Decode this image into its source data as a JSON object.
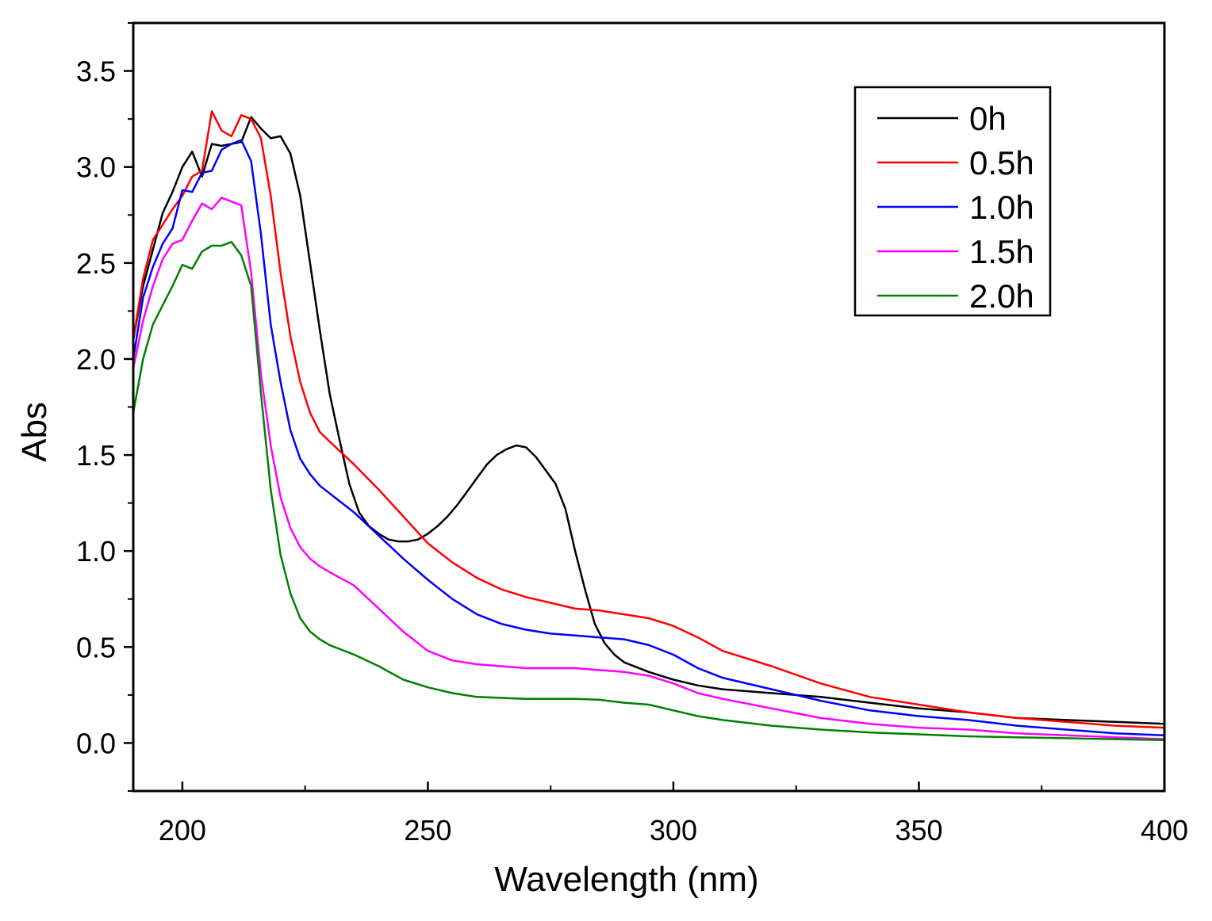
{
  "chart_data": {
    "type": "line",
    "title": "",
    "xlabel": "Wavelength (nm)",
    "ylabel": "Abs",
    "xlim": [
      190,
      400
    ],
    "ylim": [
      -0.25,
      3.75
    ],
    "xticks": [
      200,
      250,
      300,
      350,
      400
    ],
    "xtick_labels": [
      "200",
      "250",
      "300",
      "350",
      "400"
    ],
    "yticks": [
      0.0,
      0.5,
      1.0,
      1.5,
      2.0,
      2.5,
      3.0,
      3.5
    ],
    "ytick_labels": [
      "0.0",
      "0.5",
      "1.0",
      "1.5",
      "2.0",
      "2.5",
      "3.0",
      "3.5"
    ],
    "grid": false,
    "legend_position": "top-right",
    "series": [
      {
        "name": "0h",
        "color": "#000000",
        "x": [
          190,
          192,
          194,
          196,
          198,
          200,
          202,
          204,
          206,
          208,
          210,
          212,
          214,
          216,
          218,
          220,
          222,
          224,
          226,
          228,
          230,
          232,
          234,
          236,
          238,
          240,
          242,
          244,
          246,
          248,
          250,
          252,
          254,
          256,
          258,
          260,
          262,
          264,
          266,
          268,
          270,
          272,
          274,
          276,
          278,
          280,
          282,
          284,
          286,
          288,
          290,
          295,
          300,
          305,
          310,
          320,
          330,
          340,
          350,
          360,
          370,
          380,
          390,
          400
        ],
        "y": [
          2.1,
          2.38,
          2.57,
          2.76,
          2.87,
          3.0,
          3.08,
          2.95,
          3.12,
          3.11,
          3.12,
          3.13,
          3.26,
          3.2,
          3.15,
          3.16,
          3.07,
          2.85,
          2.5,
          2.15,
          1.82,
          1.58,
          1.35,
          1.2,
          1.13,
          1.09,
          1.06,
          1.05,
          1.05,
          1.06,
          1.09,
          1.13,
          1.18,
          1.24,
          1.31,
          1.38,
          1.45,
          1.5,
          1.53,
          1.55,
          1.54,
          1.49,
          1.42,
          1.35,
          1.22,
          1.0,
          0.8,
          0.62,
          0.52,
          0.46,
          0.42,
          0.37,
          0.33,
          0.3,
          0.28,
          0.26,
          0.24,
          0.21,
          0.18,
          0.16,
          0.13,
          0.12,
          0.11,
          0.1
        ]
      },
      {
        "name": "0.5h",
        "color": "#ff0000",
        "x": [
          190,
          192,
          194,
          196,
          198,
          200,
          202,
          204,
          206,
          208,
          210,
          212,
          214,
          216,
          218,
          220,
          222,
          224,
          226,
          228,
          230,
          235,
          240,
          245,
          250,
          255,
          260,
          265,
          270,
          275,
          280,
          285,
          290,
          295,
          300,
          305,
          310,
          320,
          330,
          340,
          350,
          360,
          370,
          380,
          390,
          400
        ],
        "y": [
          2.1,
          2.42,
          2.62,
          2.7,
          2.78,
          2.85,
          2.95,
          2.98,
          3.29,
          3.19,
          3.16,
          3.27,
          3.25,
          3.15,
          2.85,
          2.45,
          2.12,
          1.88,
          1.72,
          1.62,
          1.57,
          1.45,
          1.32,
          1.18,
          1.04,
          0.94,
          0.86,
          0.8,
          0.76,
          0.73,
          0.7,
          0.69,
          0.67,
          0.65,
          0.61,
          0.55,
          0.48,
          0.4,
          0.31,
          0.24,
          0.2,
          0.16,
          0.13,
          0.11,
          0.09,
          0.08
        ]
      },
      {
        "name": "1.0h",
        "color": "#0000ff",
        "x": [
          190,
          192,
          194,
          196,
          198,
          200,
          202,
          204,
          206,
          208,
          210,
          212,
          214,
          216,
          218,
          220,
          222,
          224,
          226,
          228,
          230,
          235,
          240,
          245,
          250,
          255,
          260,
          265,
          270,
          275,
          280,
          285,
          290,
          295,
          300,
          305,
          310,
          320,
          330,
          340,
          350,
          360,
          370,
          380,
          390,
          400
        ],
        "y": [
          2.0,
          2.32,
          2.48,
          2.6,
          2.68,
          2.88,
          2.87,
          2.97,
          2.98,
          3.09,
          3.12,
          3.14,
          3.03,
          2.65,
          2.18,
          1.88,
          1.63,
          1.48,
          1.4,
          1.34,
          1.3,
          1.2,
          1.08,
          0.96,
          0.85,
          0.75,
          0.67,
          0.62,
          0.59,
          0.57,
          0.56,
          0.55,
          0.54,
          0.51,
          0.46,
          0.39,
          0.34,
          0.28,
          0.22,
          0.17,
          0.14,
          0.12,
          0.09,
          0.07,
          0.05,
          0.04
        ]
      },
      {
        "name": "1.5h",
        "color": "#ff00ff",
        "x": [
          190,
          192,
          194,
          196,
          198,
          200,
          202,
          204,
          206,
          208,
          210,
          212,
          214,
          216,
          218,
          220,
          222,
          224,
          226,
          228,
          230,
          235,
          240,
          245,
          250,
          255,
          260,
          265,
          270,
          275,
          280,
          285,
          290,
          295,
          300,
          305,
          310,
          320,
          330,
          340,
          350,
          360,
          370,
          380,
          390,
          400
        ],
        "y": [
          1.95,
          2.2,
          2.38,
          2.52,
          2.6,
          2.62,
          2.72,
          2.81,
          2.78,
          2.84,
          2.82,
          2.8,
          2.45,
          1.92,
          1.55,
          1.28,
          1.12,
          1.02,
          0.96,
          0.92,
          0.89,
          0.82,
          0.7,
          0.58,
          0.48,
          0.43,
          0.41,
          0.4,
          0.39,
          0.39,
          0.39,
          0.38,
          0.37,
          0.35,
          0.31,
          0.26,
          0.23,
          0.18,
          0.13,
          0.1,
          0.08,
          0.07,
          0.05,
          0.04,
          0.03,
          0.02
        ]
      },
      {
        "name": "2.0h",
        "color": "#008000",
        "x": [
          190,
          192,
          194,
          196,
          198,
          200,
          202,
          204,
          206,
          208,
          210,
          212,
          214,
          216,
          218,
          220,
          222,
          224,
          226,
          228,
          230,
          235,
          240,
          245,
          250,
          255,
          260,
          265,
          270,
          275,
          280,
          285,
          290,
          295,
          300,
          305,
          310,
          320,
          330,
          340,
          350,
          360,
          370,
          380,
          390,
          400
        ],
        "y": [
          1.72,
          2.0,
          2.18,
          2.28,
          2.38,
          2.49,
          2.47,
          2.56,
          2.59,
          2.59,
          2.61,
          2.54,
          2.38,
          1.82,
          1.32,
          0.98,
          0.78,
          0.65,
          0.58,
          0.54,
          0.51,
          0.46,
          0.4,
          0.33,
          0.29,
          0.26,
          0.24,
          0.235,
          0.23,
          0.23,
          0.23,
          0.225,
          0.21,
          0.2,
          0.17,
          0.14,
          0.12,
          0.09,
          0.07,
          0.055,
          0.045,
          0.035,
          0.03,
          0.025,
          0.02,
          0.015
        ]
      }
    ]
  }
}
